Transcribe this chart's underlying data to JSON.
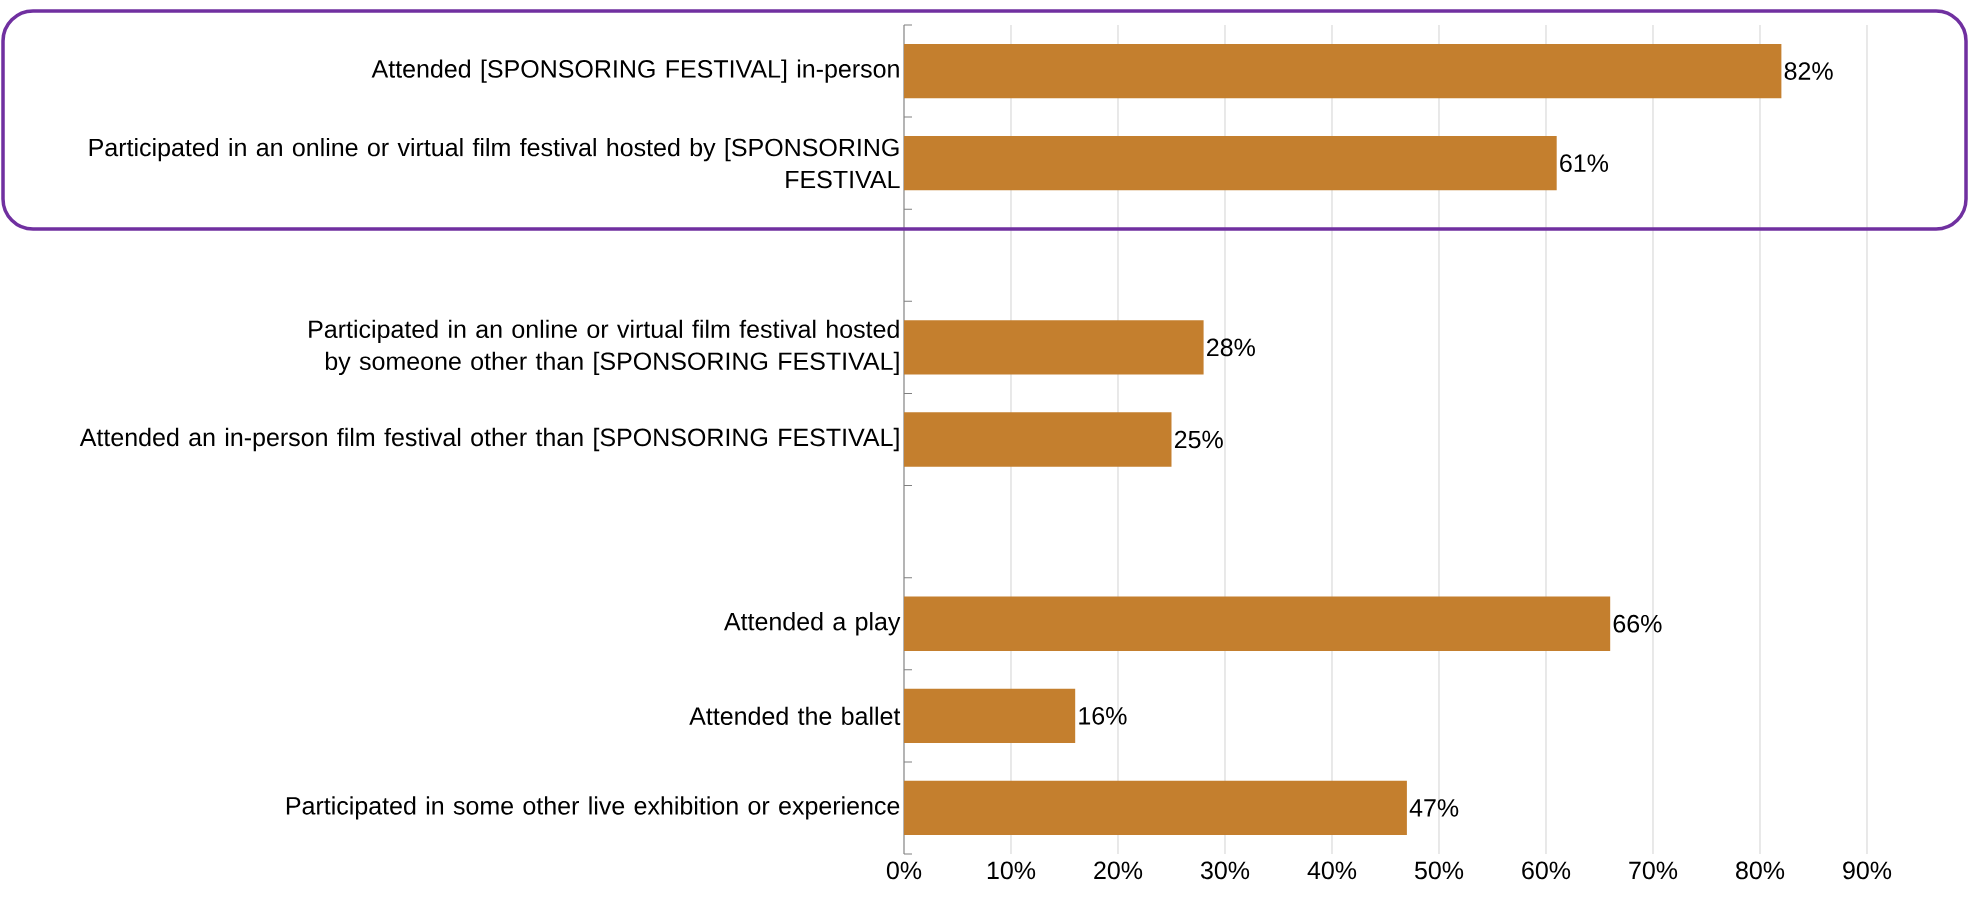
{
  "chart_data": {
    "type": "bar",
    "orientation": "horizontal",
    "categories": [
      "Attended [SPONSORING FESTIVAL] in-person",
      "Participated in an online or virtual film festival hosted by [SPONSORING FESTIVAL",
      null,
      "Participated in an online or virtual film festival hosted by someone other than [SPONSORING FESTIVAL]",
      "Attended an in-person film festival other than [SPONSORING FESTIVAL]",
      null,
      "Attended a play",
      "Attended the ballet",
      "Participated in some other live exhibition or experience"
    ],
    "values": [
      82,
      61,
      null,
      28,
      25,
      null,
      66,
      16,
      47
    ],
    "value_labels": [
      "82%",
      "61%",
      null,
      "28%",
      "25%",
      null,
      "66%",
      "16%",
      "47%"
    ],
    "color": "#c47f2e",
    "xlim": [
      0,
      90
    ],
    "xticks": [
      {
        "value": 0,
        "label": "0%"
      },
      {
        "value": 10,
        "label": "10%"
      },
      {
        "value": 20,
        "label": "20%"
      },
      {
        "value": 30,
        "label": "30%"
      },
      {
        "value": 40,
        "label": "40%"
      },
      {
        "value": 50,
        "label": "50%"
      },
      {
        "value": 60,
        "label": "60%"
      },
      {
        "value": 70,
        "label": "70%"
      },
      {
        "value": 80,
        "label": "80%"
      },
      {
        "value": 90,
        "label": "90%"
      }
    ],
    "grid": "x"
  }
}
